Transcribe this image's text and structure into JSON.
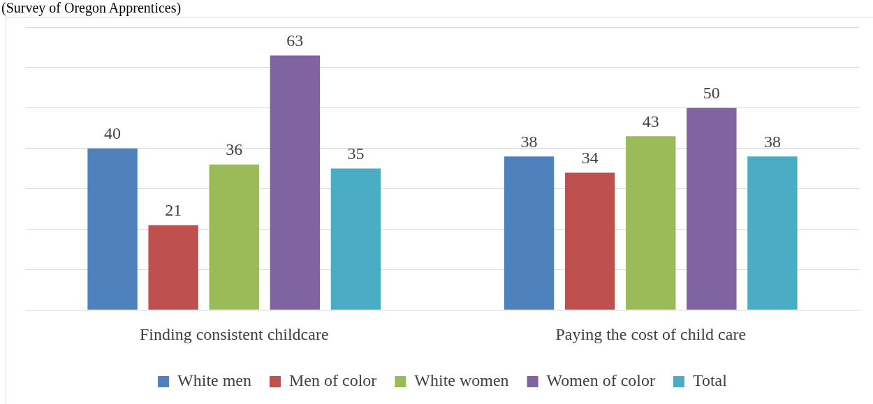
{
  "chart_data": {
    "type": "bar",
    "subtitle": "(Survey of Oregon Apprentices)",
    "categories": [
      "Finding consistent childcare",
      "Paying the cost of child care"
    ],
    "series": [
      {
        "name": "White men",
        "color": "#4f81bd",
        "values": [
          40,
          38
        ]
      },
      {
        "name": "Men of color",
        "color": "#c0504d",
        "values": [
          21,
          34
        ]
      },
      {
        "name": "White women",
        "color": "#9bbb59",
        "values": [
          36,
          43
        ]
      },
      {
        "name": "Women of color",
        "color": "#8064a2",
        "values": [
          63,
          50
        ]
      },
      {
        "name": "Total",
        "color": "#4bacc6",
        "values": [
          35,
          38
        ]
      }
    ],
    "ylim": [
      0,
      70
    ],
    "yticks": [
      0,
      10,
      20,
      30,
      40,
      50,
      60,
      70
    ],
    "tick_labels": "x",
    "grid": "y",
    "legend": "bottom",
    "data_labels": true
  }
}
